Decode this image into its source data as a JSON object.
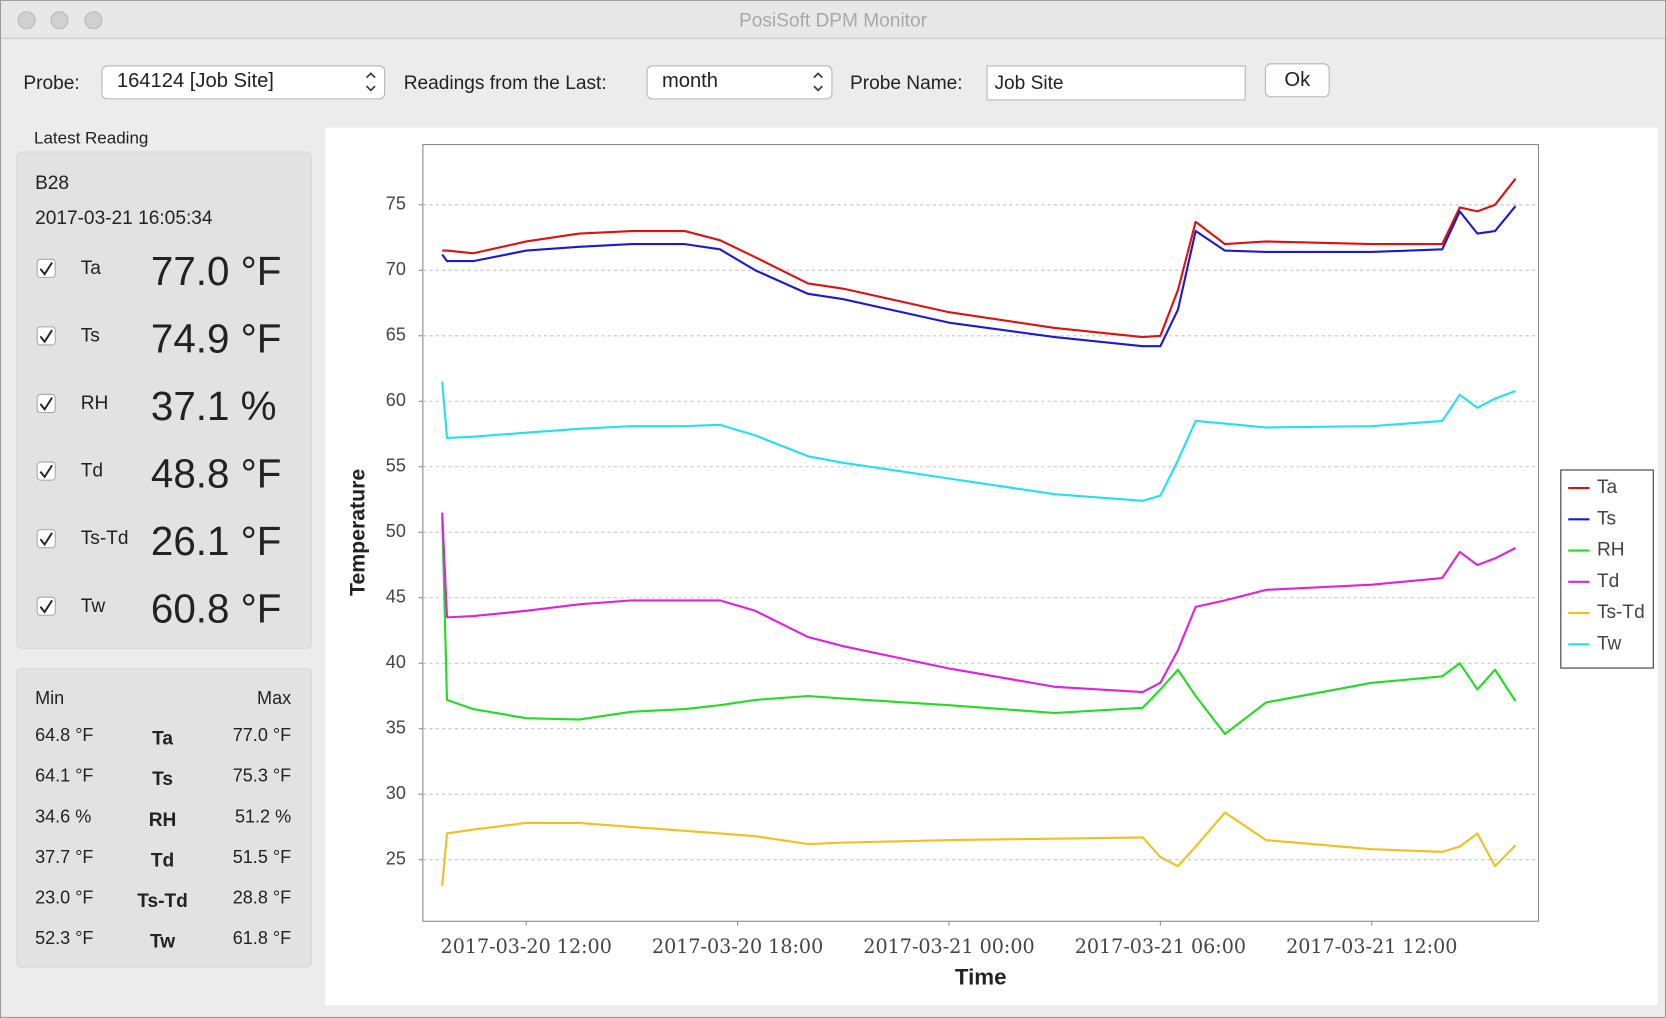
{
  "window": {
    "title": "PosiSoft DPM Monitor"
  },
  "toolbar": {
    "probe_label": "Probe:",
    "probe_value": "164124 [Job Site]",
    "readings_label": "Readings from the Last:",
    "readings_value": "month",
    "name_label": "Probe Name:",
    "name_value": "Job Site",
    "ok": "Ok"
  },
  "latest": {
    "title": "Latest Reading",
    "probe": "B28",
    "timestamp": "2017-03-21 16:05:34",
    "readings": [
      {
        "name": "Ta",
        "value": "77.0 °F"
      },
      {
        "name": "Ts",
        "value": "74.9 °F"
      },
      {
        "name": "RH",
        "value": "37.1 %"
      },
      {
        "name": "Td",
        "value": "48.8 °F"
      },
      {
        "name": "Ts-Td",
        "value": "26.1 °F"
      },
      {
        "name": "Tw",
        "value": "60.8 °F"
      }
    ]
  },
  "minmax": {
    "min_header": "Min",
    "max_header": "Max",
    "rows": [
      {
        "min": "64.8 °F",
        "name": "Ta",
        "max": "77.0 °F"
      },
      {
        "min": "64.1 °F",
        "name": "Ts",
        "max": "75.3 °F"
      },
      {
        "min": "34.6 %",
        "name": "RH",
        "max": "51.2 %"
      },
      {
        "min": "37.7 °F",
        "name": "Td",
        "max": "51.5 °F"
      },
      {
        "min": "23.0 °F",
        "name": "Ts-Td",
        "max": "28.8 °F"
      },
      {
        "min": "52.3 °F",
        "name": "Tw",
        "max": "61.8 °F"
      }
    ]
  },
  "chart_data": {
    "type": "line",
    "xlabel": "Time",
    "ylabel": "Temperature",
    "x": [
      "2017-03-20 09:37",
      "2017-03-20 09:45",
      "2017-03-20 10:30",
      "2017-03-20 12:00",
      "2017-03-20 13:30",
      "2017-03-20 15:00",
      "2017-03-20 16:30",
      "2017-03-20 17:30",
      "2017-03-20 18:30",
      "2017-03-20 20:00",
      "2017-03-20 21:00",
      "2017-03-21 00:00",
      "2017-03-21 03:00",
      "2017-03-21 05:30",
      "2017-03-21 06:00",
      "2017-03-21 06:30",
      "2017-03-21 07:00",
      "2017-03-21 07:50",
      "2017-03-21 09:00",
      "2017-03-21 12:00",
      "2017-03-21 14:00",
      "2017-03-21 14:30",
      "2017-03-21 15:00",
      "2017-03-21 15:30",
      "2017-03-21 16:05"
    ],
    "series": [
      {
        "name": "Ta",
        "color": "#e01010",
        "values": [
          71.5,
          71.5,
          71.3,
          72.2,
          72.8,
          73.0,
          73.0,
          72.3,
          71.0,
          69.0,
          68.6,
          66.8,
          65.6,
          64.9,
          65.0,
          68.5,
          73.7,
          72.0,
          72.2,
          72.0,
          72.0,
          74.8,
          74.5,
          75.0,
          77.0
        ]
      },
      {
        "name": "Ts",
        "color": "#1a1ad0",
        "values": [
          71.2,
          70.7,
          70.7,
          71.5,
          71.8,
          72.0,
          72.0,
          71.6,
          70.0,
          68.2,
          67.8,
          66.0,
          64.9,
          64.2,
          64.2,
          67.0,
          73.0,
          71.5,
          71.4,
          71.4,
          71.6,
          74.5,
          72.8,
          73.0,
          74.9
        ]
      },
      {
        "name": "RH",
        "color": "#22dd22",
        "values": [
          51.2,
          37.2,
          36.5,
          35.8,
          35.7,
          36.3,
          36.5,
          36.8,
          37.2,
          37.5,
          37.3,
          36.8,
          36.2,
          36.6,
          38.0,
          39.5,
          37.5,
          34.6,
          37.0,
          38.5,
          39.0,
          40.0,
          38.0,
          39.5,
          37.1
        ]
      },
      {
        "name": "Td",
        "color": "#e020e0",
        "values": [
          51.5,
          43.5,
          43.6,
          44.0,
          44.5,
          44.8,
          44.8,
          44.8,
          44.0,
          42.0,
          41.3,
          39.6,
          38.2,
          37.8,
          38.5,
          41.0,
          44.3,
          44.8,
          45.6,
          46.0,
          46.5,
          48.5,
          47.5,
          48.0,
          48.8
        ]
      },
      {
        "name": "Ts-Td",
        "color": "#f0c020",
        "values": [
          23.0,
          27.0,
          27.3,
          27.8,
          27.8,
          27.5,
          27.2,
          27.0,
          26.8,
          26.2,
          26.3,
          26.5,
          26.6,
          26.7,
          25.2,
          24.5,
          26.0,
          28.6,
          26.5,
          25.8,
          25.6,
          26.0,
          27.0,
          24.5,
          26.1
        ]
      },
      {
        "name": "Tw",
        "color": "#22e0f0",
        "values": [
          61.5,
          57.2,
          57.3,
          57.6,
          57.9,
          58.1,
          58.1,
          58.2,
          57.4,
          55.8,
          55.3,
          54.1,
          52.9,
          52.4,
          52.8,
          55.5,
          58.5,
          58.3,
          58.0,
          58.1,
          58.5,
          60.5,
          59.5,
          60.2,
          60.8
        ]
      }
    ],
    "xlim": [
      "2017-03-20 09:04",
      "2017-03-21 16:44"
    ],
    "xticks": [
      "2017-03-20 12:00",
      "2017-03-20 18:00",
      "2017-03-21 00:00",
      "2017-03-21 06:00",
      "2017-03-21 12:00"
    ],
    "ylim": [
      20.3,
      79.6
    ],
    "yticks": [
      25,
      30,
      35,
      40,
      45,
      50,
      55,
      60,
      65,
      70,
      75
    ],
    "grid": true,
    "legend": "right"
  }
}
